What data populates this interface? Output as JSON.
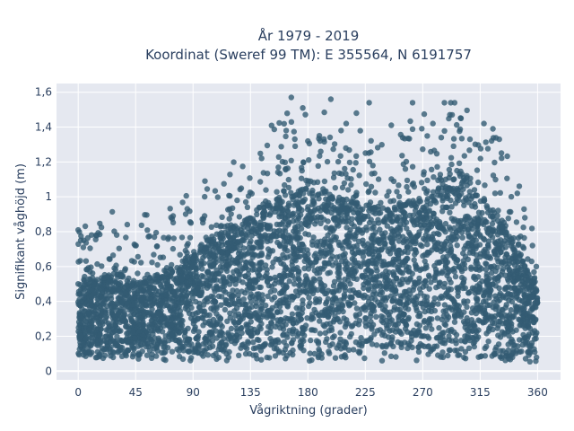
{
  "chart_data": {
    "type": "scatter",
    "title_line1": "År 1979 - 2019",
    "title_line2": "Koordinat (Sweref 99 TM): E 355564, N 6191757",
    "xlabel": "Vågriktning (grader)",
    "ylabel": "Signifikant våghöjd (m)",
    "xlim": [
      -17,
      378
    ],
    "ylim": [
      -0.05,
      1.65
    ],
    "x_ticks": [
      0,
      45,
      90,
      135,
      180,
      225,
      270,
      315,
      360
    ],
    "x_tick_labels": [
      "0",
      "45",
      "90",
      "135",
      "180",
      "225",
      "270",
      "315",
      "360"
    ],
    "y_ticks": [
      0,
      0.2,
      0.4,
      0.6,
      0.8,
      1.0,
      1.2,
      1.4,
      1.6
    ],
    "y_tick_labels": [
      "0",
      "0,2",
      "0,4",
      "0,6",
      "0,8",
      "1",
      "1,2",
      "1,4",
      "1,6"
    ],
    "grid": true,
    "marker_color": "#335b73",
    "plot_background": "#e5e8f0",
    "envelope": {
      "direction_deg": [
        0,
        15,
        30,
        45,
        60,
        75,
        90,
        105,
        120,
        135,
        150,
        165,
        180,
        195,
        210,
        225,
        240,
        255,
        270,
        285,
        300,
        315,
        330,
        345,
        360
      ],
      "typical_max_height_m": [
        0.5,
        0.52,
        0.56,
        0.5,
        0.55,
        0.58,
        0.66,
        0.76,
        0.82,
        0.88,
        0.96,
        1.02,
        1.05,
        1.0,
        0.98,
        0.95,
        0.92,
        0.95,
        1.0,
        1.05,
        1.04,
        1.0,
        0.85,
        0.7,
        0.45
      ],
      "min_height_m": 0.05
    },
    "outliers": [
      {
        "x": 0,
        "y": 0.81
      },
      {
        "x": 2,
        "y": 0.75
      },
      {
        "x": 4,
        "y": 0.71
      },
      {
        "x": 167,
        "y": 1.57
      },
      {
        "x": 176,
        "y": 1.51
      },
      {
        "x": 198,
        "y": 1.56
      },
      {
        "x": 210,
        "y": 1.42
      },
      {
        "x": 218,
        "y": 1.48
      },
      {
        "x": 228,
        "y": 1.54
      },
      {
        "x": 262,
        "y": 1.54
      },
      {
        "x": 278,
        "y": 1.42
      },
      {
        "x": 287,
        "y": 1.54
      },
      {
        "x": 292,
        "y": 1.54
      },
      {
        "x": 295,
        "y": 1.54
      },
      {
        "x": 293,
        "y": 1.47
      },
      {
        "x": 300,
        "y": 1.45
      },
      {
        "x": 318,
        "y": 1.42
      },
      {
        "x": 325,
        "y": 1.39
      },
      {
        "x": 330,
        "y": 1.33
      },
      {
        "x": 163,
        "y": 1.38
      },
      {
        "x": 189,
        "y": 1.35
      },
      {
        "x": 180,
        "y": 1.32
      },
      {
        "x": 206,
        "y": 1.38
      },
      {
        "x": 170,
        "y": 1.29
      },
      {
        "x": 350,
        "y": 0.88
      },
      {
        "x": 356,
        "y": 0.72
      },
      {
        "x": 359,
        "y": 0.6
      }
    ]
  }
}
